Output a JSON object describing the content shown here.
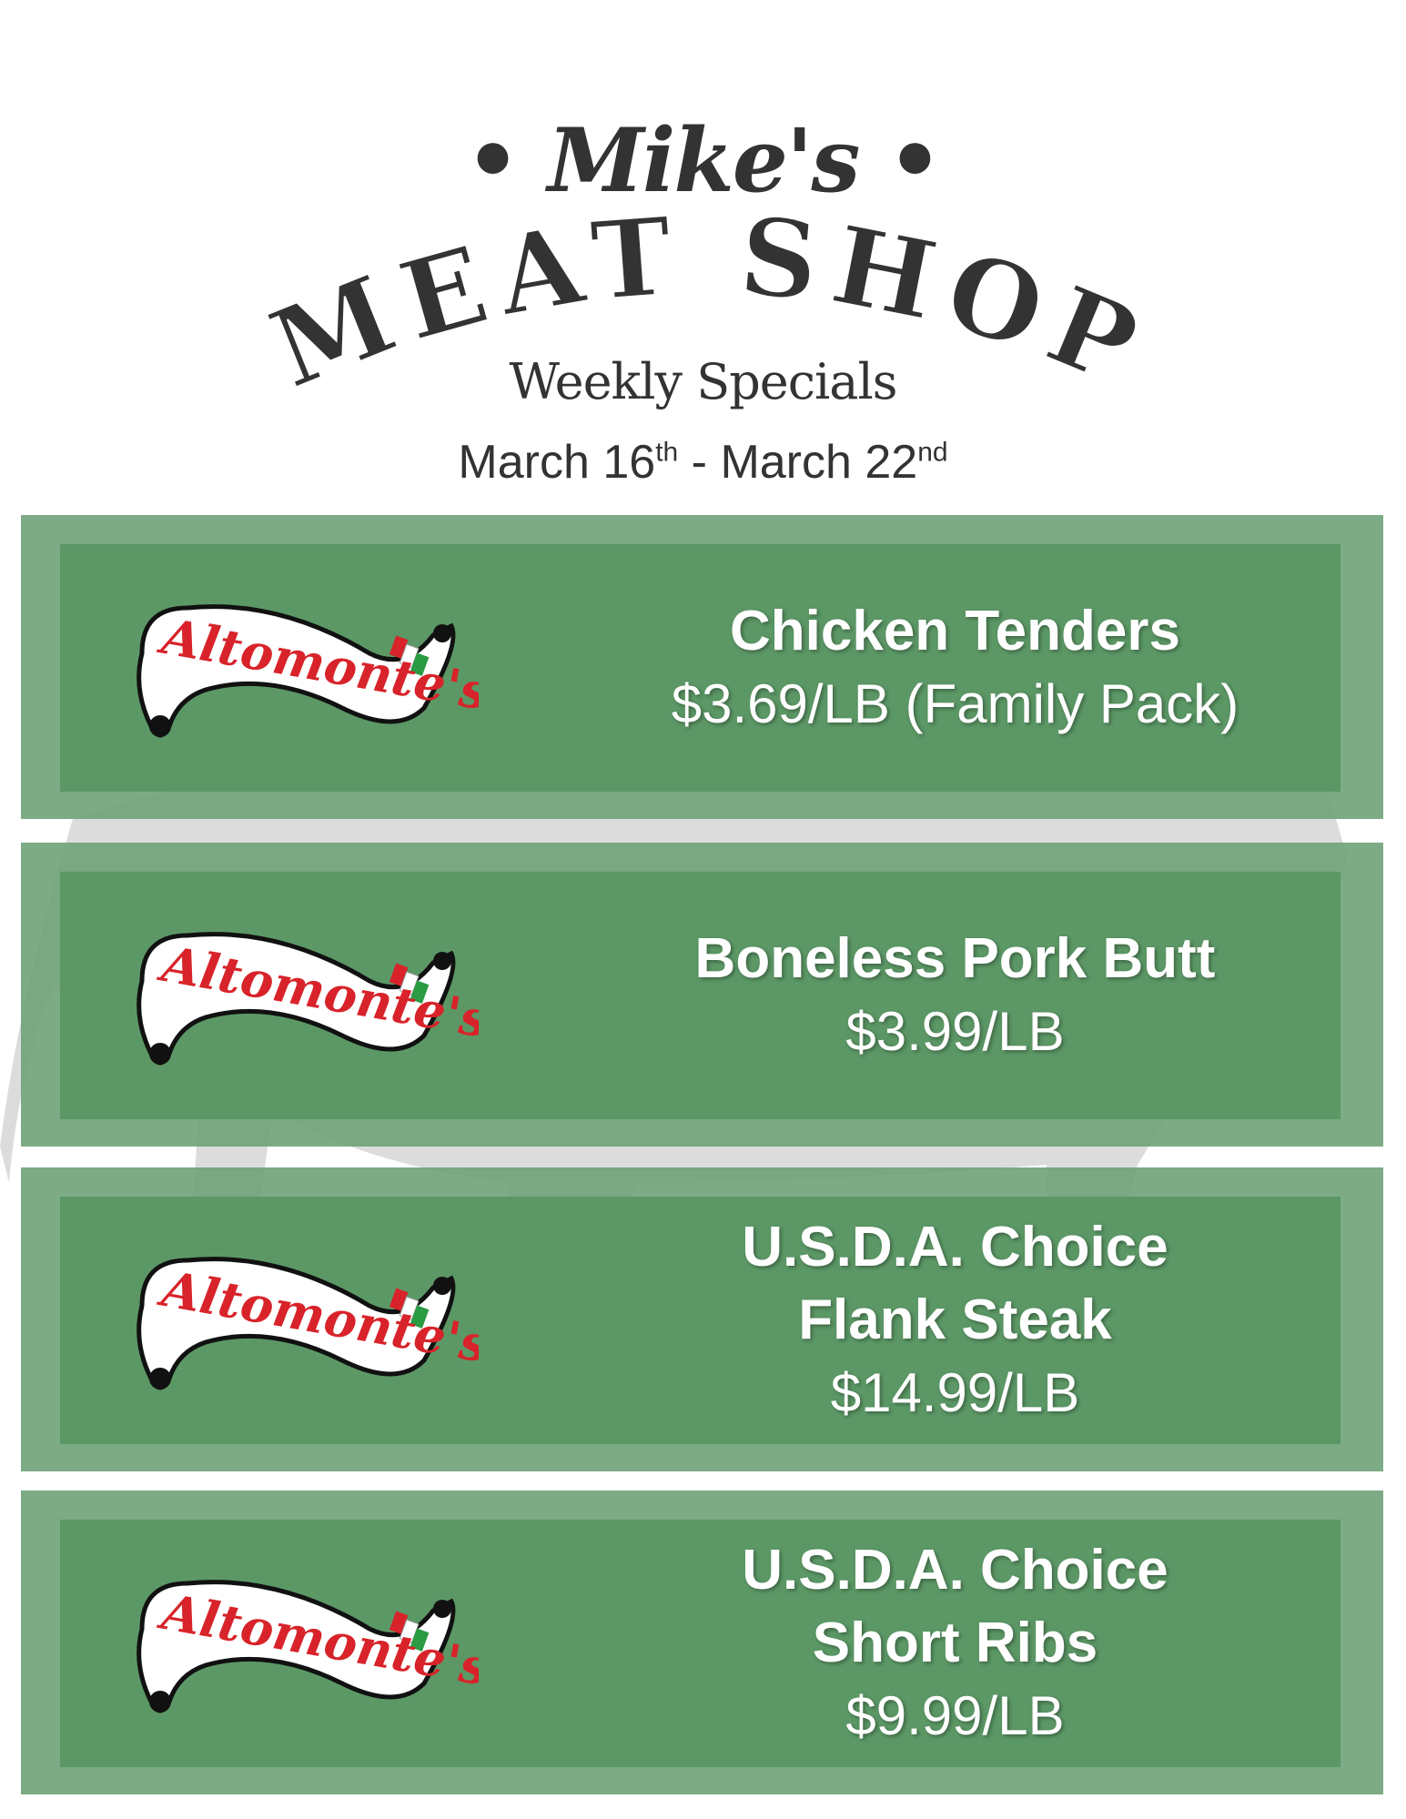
{
  "header": {
    "brand_script": "• Mike's •",
    "brand_main": "MEAT SHOP",
    "subtitle": "Weekly Specials",
    "date_start": "March 16",
    "date_start_suffix": "th",
    "date_sep": " - ",
    "date_end": "March 22",
    "date_end_suffix": "nd"
  },
  "logo_text": "Altomonte's",
  "colors": {
    "card_outer": "#7aa982",
    "card_inner": "#5c9866",
    "logo_red": "#d8232a",
    "text_dark": "#333333"
  },
  "specials": [
    {
      "name_lines": [
        "Chicken Tenders"
      ],
      "price": "$3.69/LB (Family Pack)"
    },
    {
      "name_lines": [
        "Boneless Pork Butt"
      ],
      "price": "$3.99/LB"
    },
    {
      "name_lines": [
        "U.S.D.A. Choice",
        "Flank Steak"
      ],
      "price": "$14.99/LB"
    },
    {
      "name_lines": [
        "U.S.D.A. Choice",
        "Short Ribs"
      ],
      "price": "$9.99/LB"
    }
  ]
}
